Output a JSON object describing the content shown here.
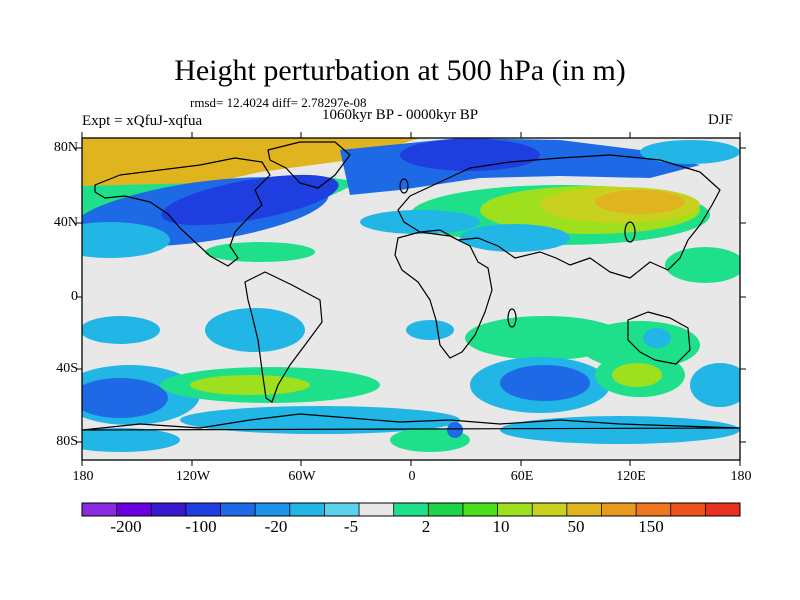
{
  "title": "Height perturbation at 500 hPa (in m)",
  "stats": "rmsd= 12.4024 diff= 2.78297e-08",
  "experiment": "Expt = xQfuJ-xqfua",
  "period": "1060kyr BP - 0000kyr BP",
  "season": "DJF",
  "lat_labels": [
    "80N",
    "40N",
    "0",
    "40S",
    "80S"
  ],
  "lon_labels": [
    "180",
    "120W",
    "60W",
    "0",
    "60E",
    "120E",
    "180"
  ],
  "colorbar": {
    "labels": [
      "-200",
      "-100",
      "-20",
      "-5",
      "2",
      "10",
      "50",
      "150"
    ],
    "colors": [
      "#8a2be2",
      "#6a00e0",
      "#3a18d0",
      "#1e3ee0",
      "#1e6ae6",
      "#1e92e8",
      "#22b6e6",
      "#5ad2ec",
      "#e8e8e8",
      "#1ee08a",
      "#1ed24a",
      "#4ae01e",
      "#9ee01e",
      "#c8d21e",
      "#e0b41e",
      "#e89a1e",
      "#ee761e",
      "#ec521e",
      "#e8301e"
    ]
  },
  "map_colors": {
    "neutral": "#e8e8e8",
    "light_blue": "#22b6e6",
    "mid_blue": "#1e6ae6",
    "dark_blue": "#1e3ee0",
    "deep_blue": "#3a18d0",
    "light_green": "#1ee08a",
    "green": "#1ed24a",
    "yellow_green": "#9ee01e",
    "olive": "#c8d21e",
    "orange": "#e0b41e",
    "coast": "#000000"
  }
}
